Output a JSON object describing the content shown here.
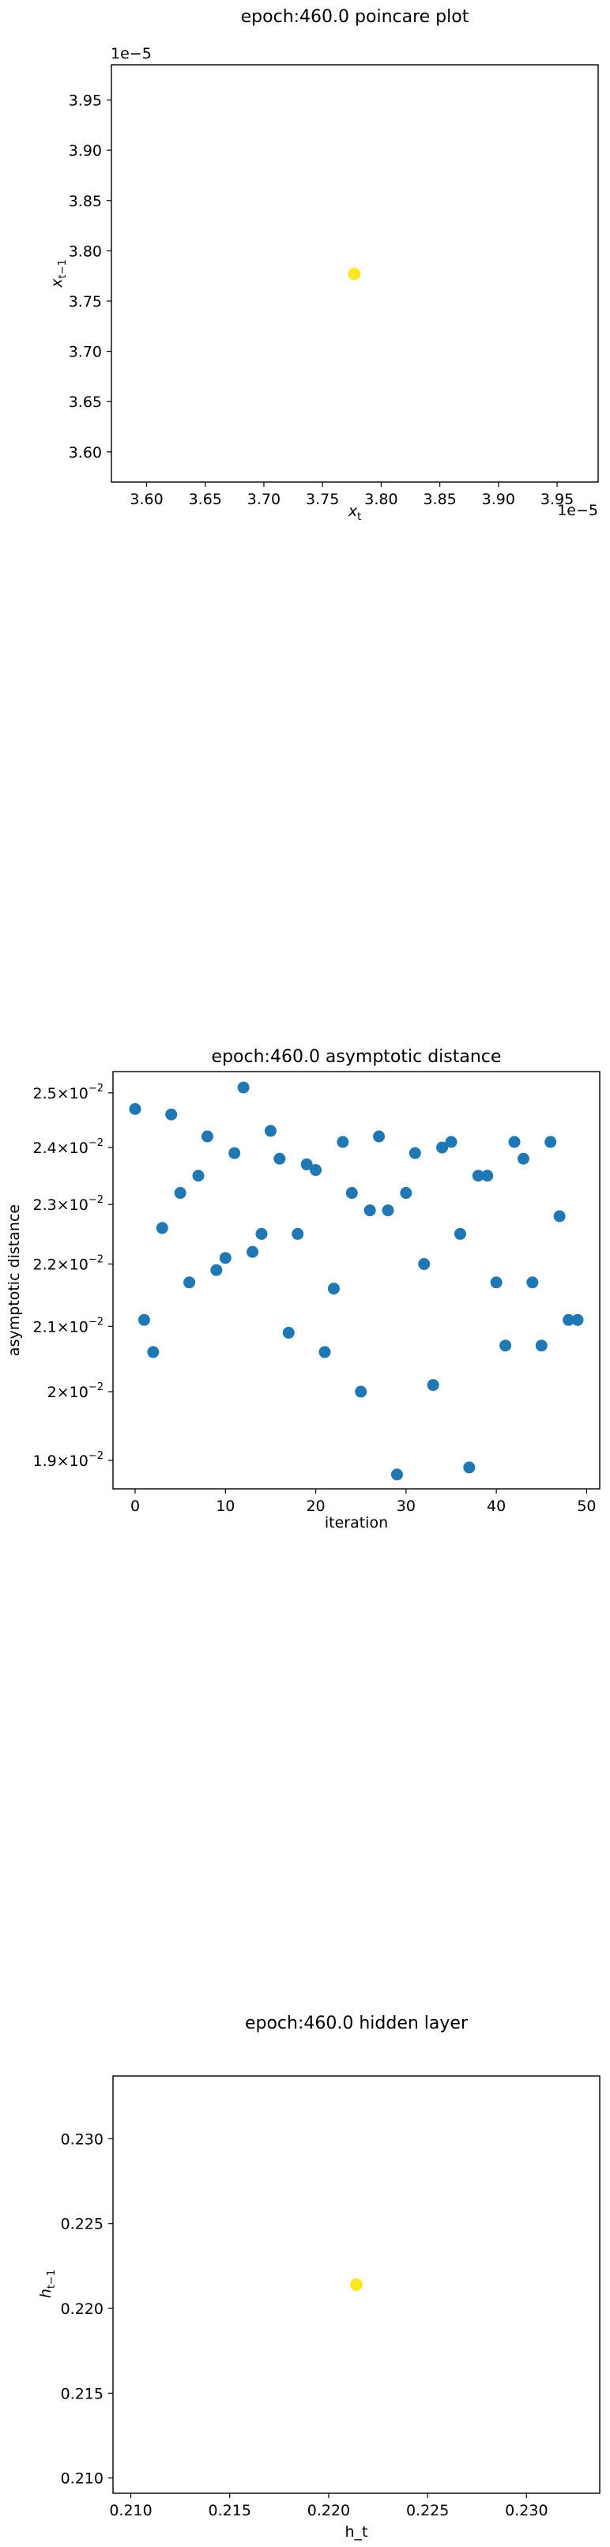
{
  "chart_data": [
    {
      "type": "scatter",
      "title": "epoch:460.0 poincare plot",
      "xlabel": "x_t",
      "ylabel": "x_{t-1}",
      "x_offset_label": "1e−5",
      "y_offset_label": "1e−5",
      "xlim": [
        3.57,
        3.985
      ],
      "ylim": [
        3.57,
        3.985
      ],
      "x_ticks": [
        3.6,
        3.65,
        3.7,
        3.75,
        3.8,
        3.85,
        3.9,
        3.95
      ],
      "x_tick_labels": [
        "3.60",
        "3.65",
        "3.70",
        "3.75",
        "3.80",
        "3.85",
        "3.90",
        "3.95"
      ],
      "y_ticks": [
        3.6,
        3.65,
        3.7,
        3.75,
        3.8,
        3.85,
        3.9,
        3.95
      ],
      "y_tick_labels": [
        "3.60",
        "3.65",
        "3.70",
        "3.75",
        "3.80",
        "3.85",
        "3.90",
        "3.95"
      ],
      "points": [
        {
          "x": 3.777,
          "y": 3.777
        }
      ],
      "point_color": "#fde725",
      "grid": false
    },
    {
      "type": "scatter",
      "title": "epoch:460.0 asymptotic distance",
      "xlabel": "iteration",
      "ylabel": "asymptotic distance",
      "y_scale": "log",
      "xlim": [
        -2.45,
        51.45
      ],
      "ylim": [
        0.0186,
        0.0254
      ],
      "x_ticks": [
        0,
        10,
        20,
        30,
        40,
        50
      ],
      "x_tick_labels": [
        "0",
        "10",
        "20",
        "30",
        "40",
        "50"
      ],
      "y_ticks": [
        0.019,
        0.02,
        0.021,
        0.022,
        0.023,
        0.024,
        0.025
      ],
      "y_tick_labels": [
        {
          "mant": "1.9×10",
          "exp": "−2"
        },
        {
          "mant": "2×10",
          "exp": "−2"
        },
        {
          "mant": "2.1×10",
          "exp": "−2"
        },
        {
          "mant": "2.2×10",
          "exp": "−2"
        },
        {
          "mant": "2.3×10",
          "exp": "−2"
        },
        {
          "mant": "2.4×10",
          "exp": "−2"
        },
        {
          "mant": "2.5×10",
          "exp": "−2"
        }
      ],
      "x": [
        0,
        1,
        2,
        3,
        4,
        5,
        6,
        7,
        8,
        9,
        10,
        11,
        12,
        13,
        14,
        15,
        16,
        17,
        18,
        19,
        20,
        21,
        22,
        23,
        24,
        25,
        26,
        27,
        28,
        29,
        30,
        31,
        32,
        33,
        34,
        35,
        36,
        37,
        38,
        39,
        40,
        41,
        42,
        43,
        44,
        45,
        46,
        47,
        48,
        49
      ],
      "y": [
        0.0247,
        0.0211,
        0.0206,
        0.0226,
        0.0246,
        0.0232,
        0.0217,
        0.0235,
        0.0242,
        0.0219,
        0.0221,
        0.0239,
        0.0251,
        0.0222,
        0.0225,
        0.0243,
        0.0238,
        0.0209,
        0.0225,
        0.0237,
        0.0236,
        0.0206,
        0.0216,
        0.0241,
        0.0232,
        0.02,
        0.0229,
        0.0242,
        0.0229,
        0.0188,
        0.0232,
        0.0239,
        0.022,
        0.0201,
        0.024,
        0.0241,
        0.0225,
        0.0189,
        0.0235,
        0.0235,
        0.0217,
        0.0207,
        0.0241,
        0.0238,
        0.0217,
        0.0207,
        0.0241,
        0.0228,
        0.0211,
        0.0211
      ],
      "point_color": "#1f77b4",
      "grid": false
    },
    {
      "type": "scatter",
      "title": "epoch:460.0 hidden layer",
      "xlabel": "h_t",
      "ylabel": "h_{t-1}",
      "xlim": [
        0.2091,
        0.2337
      ],
      "ylim": [
        0.2091,
        0.2337
      ],
      "x_ticks": [
        0.21,
        0.215,
        0.22,
        0.225,
        0.23
      ],
      "x_tick_labels": [
        "0.210",
        "0.215",
        "0.220",
        "0.225",
        "0.230"
      ],
      "y_ticks": [
        0.21,
        0.215,
        0.22,
        0.225,
        0.23
      ],
      "y_tick_labels": [
        "0.210",
        "0.215",
        "0.220",
        "0.225",
        "0.230"
      ],
      "points": [
        {
          "x": 0.2214,
          "y": 0.2214
        }
      ],
      "point_color": "#fde725",
      "grid": false
    }
  ]
}
